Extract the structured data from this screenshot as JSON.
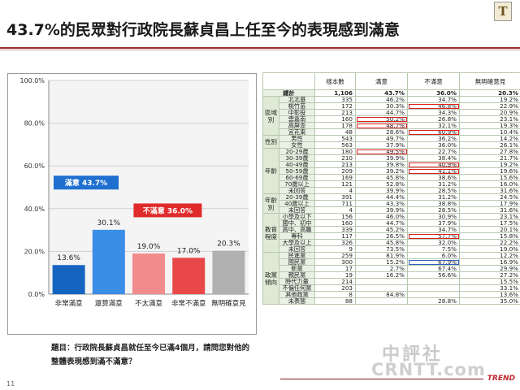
{
  "header": {
    "title": "43.7%的民眾對行政院長蘇貞昌上任至今的表現感到滿意",
    "logo_text": "T"
  },
  "chart_data": {
    "type": "bar",
    "categories": [
      "非常滿意",
      "還算滿意",
      "不太滿意",
      "非常不滿意",
      "無明確意見"
    ],
    "values": [
      13.6,
      30.1,
      19.0,
      17.0,
      20.3
    ],
    "value_labels": [
      "13.6%",
      "30.1%",
      "19.0%",
      "17.0%",
      "20.3%"
    ],
    "colors": [
      "#1565c0",
      "#3a8ee6",
      "#f28b8b",
      "#e84848",
      "#b0b0b0"
    ],
    "yticks": [
      "0.0%",
      "20.0%",
      "40.0%",
      "60.0%",
      "80.0%",
      "100.0%"
    ],
    "ylim": [
      0,
      100
    ],
    "grid": true,
    "annotations": [
      {
        "text": "滿意 43.7%",
        "color": "#1e6fcf"
      },
      {
        "text": "不滿意 36.0%",
        "color": "#e02b2b"
      }
    ]
  },
  "question": "題目：行政院長蘇貞昌就任至今已滿4個月，請問您對他的整體表現感到滿不滿意？",
  "table": {
    "headers": [
      "樣本數",
      "滿意",
      "不滿意",
      "無明確意見"
    ],
    "total": {
      "label": "總計",
      "n": "1,106",
      "sat": "43.7%",
      "dis": "36.0%",
      "none": "20.3%"
    },
    "groups": [
      {
        "name": "區域別",
        "rows": [
          [
            "北北基",
            "335",
            "46.2%",
            "34.7%",
            "19.2%"
          ],
          [
            "桃竹苗",
            "172",
            "30.3%",
            "46.8%",
            "22.9%"
          ],
          [
            "中彰投",
            "213",
            "44.7%",
            "34.3%",
            "20.9%"
          ],
          [
            "雲嘉南",
            "160",
            "50.2%",
            "26.8%",
            "23.1%"
          ],
          [
            "高屏澎",
            "178",
            "48.7%",
            "32.1%",
            "19.3%"
          ],
          [
            "宜花東",
            "48",
            "28.6%",
            "60.9%",
            "10.4%"
          ]
        ]
      },
      {
        "name": "性別",
        "rows": [
          [
            "男性",
            "543",
            "49.7%",
            "36.2%",
            "14.2%"
          ],
          [
            "女性",
            "563",
            "37.9%",
            "36.0%",
            "26.1%"
          ]
        ]
      },
      {
        "name": "年齡",
        "rows": [
          [
            "20-29歲",
            "180",
            "49.5%",
            "22.7%",
            "27.8%"
          ],
          [
            "30-39歲",
            "210",
            "39.9%",
            "38.4%",
            "21.7%"
          ],
          [
            "40-49歲",
            "213",
            "39.8%",
            "40.9%",
            "19.2%"
          ],
          [
            "50-59歲",
            "209",
            "39.2%",
            "41.1%",
            "19.6%"
          ],
          [
            "60-69歲",
            "169",
            "45.8%",
            "38.6%",
            "15.6%"
          ],
          [
            "70歲以上",
            "121",
            "52.8%",
            "31.2%",
            "16.0%"
          ],
          [
            "未回答",
            "4",
            "39.9%",
            "28.5%",
            "31.6%"
          ]
        ]
      },
      {
        "name": "年齡別",
        "rows": [
          [
            "20-39歲",
            "391",
            "44.4%",
            "31.2%",
            "24.5%"
          ],
          [
            "40歲以上",
            "711",
            "43.3%",
            "38.8%",
            "17.9%"
          ],
          [
            "未回答",
            "4",
            "39.9%",
            "28.5%",
            "31.6%"
          ]
        ]
      },
      {
        "name": "教育程度",
        "rows": [
          [
            "小學及以下",
            "156",
            "46.0%",
            "30.9%",
            "23.1%"
          ],
          [
            "國中、初中",
            "160",
            "44.7%",
            "37.9%",
            "17.5%"
          ],
          [
            "高中、高職",
            "339",
            "45.2%",
            "34.7%",
            "20.1%"
          ],
          [
            "專科",
            "117",
            "26.5%",
            "57.7%",
            "15.8%"
          ],
          [
            "大學及以上",
            "326",
            "45.8%",
            "32.0%",
            "22.2%"
          ],
          [
            "未回答",
            "9",
            "73.5%",
            "7.5%",
            "19.0%"
          ]
        ]
      },
      {
        "name": "政黨傾向",
        "rows": [
          [
            "民進黨",
            "259",
            "81.9%",
            "6.0%",
            "12.2%"
          ],
          [
            "國民黨",
            "300",
            "15.2%",
            "67.9%",
            "16.9%"
          ],
          [
            "新黨",
            "17",
            "2.7%",
            "67.4%",
            "29.9%"
          ],
          [
            "親民黨",
            "19",
            "16.2%",
            "56.6%",
            "27.2%"
          ],
          [
            "時代力量",
            "214",
            "",
            "",
            "15.5%"
          ],
          [
            "不偏任何黨",
            "203",
            "",
            "",
            "33.1%"
          ],
          [
            "其他政黨",
            "8",
            "84.8%",
            "",
            "13.6%"
          ],
          [
            "未表態",
            "88",
            "",
            "28.8%",
            "35.0%"
          ]
        ]
      }
    ]
  },
  "footer": {
    "page": "11",
    "brand": "TREND"
  },
  "watermark": {
    "line1": "中評社",
    "line2": "CRNTT.com"
  }
}
